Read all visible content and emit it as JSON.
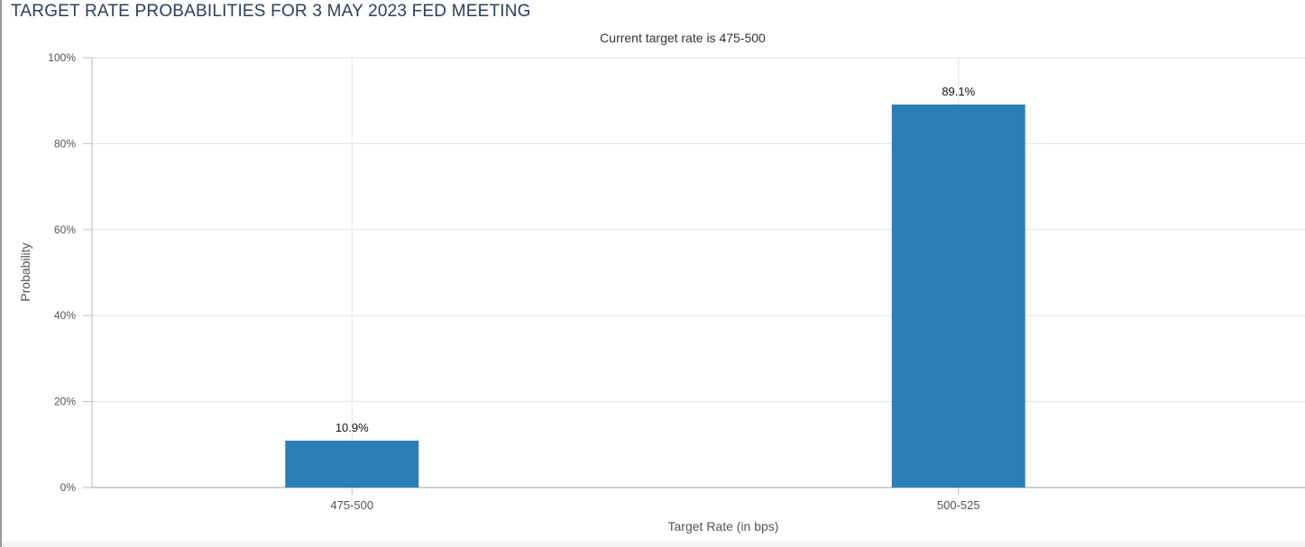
{
  "page": {
    "title": "TARGET RATE PROBABILITIES FOR 3 MAY 2023 FED MEETING"
  },
  "chart_data": {
    "type": "bar",
    "subtitle": "Current target rate is 475-500",
    "xlabel": "Target Rate (in bps)",
    "ylabel": "Probability",
    "categories": [
      "475-500",
      "500-525"
    ],
    "values": [
      10.9,
      89.1
    ],
    "data_labels": [
      "10.9%",
      "89.1%"
    ],
    "ylim": [
      0,
      100
    ],
    "yticks": [
      {
        "value": 0,
        "label": "0%"
      },
      {
        "value": 20,
        "label": "20%"
      },
      {
        "value": 40,
        "label": "40%"
      },
      {
        "value": 60,
        "label": "60%"
      },
      {
        "value": 80,
        "label": "80%"
      },
      {
        "value": 100,
        "label": "100%"
      }
    ],
    "grid": true,
    "legend": "none",
    "colors": {
      "bar": "#2a7fb8",
      "grid": "#e3e3e3",
      "axis": "#bdbdbd",
      "text": "#333333",
      "label": "#555555"
    }
  }
}
